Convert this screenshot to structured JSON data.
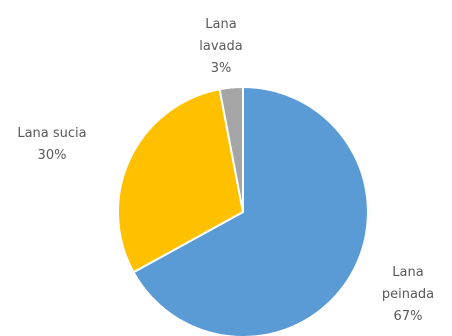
{
  "chart_data": {
    "type": "pie",
    "title": "",
    "slices": [
      {
        "label": "Lana peinada",
        "label_lines": [
          "Lana",
          "peinada"
        ],
        "value": 67,
        "value_label": "67%",
        "color": "#5B9BD5"
      },
      {
        "label": "Lana sucia",
        "label_lines": [
          "Lana sucia"
        ],
        "value": 30,
        "value_label": "30%",
        "color": "#FFC000"
      },
      {
        "label": "Lana lavada",
        "label_lines": [
          "Lana",
          "lavada"
        ],
        "value": 3,
        "value_label": "3%",
        "color": "#A5A5A5"
      }
    ],
    "start_angle_deg": 0,
    "direction": "clockwise",
    "slice_border_color": "#ffffff",
    "legend": "none"
  }
}
